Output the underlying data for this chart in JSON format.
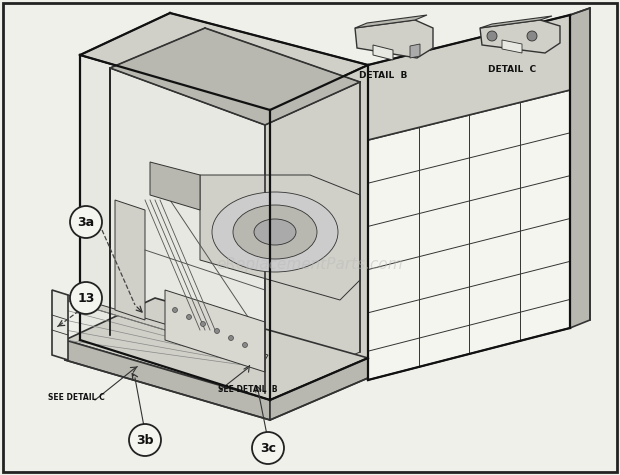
{
  "bg_color": "#f0f0eb",
  "border_color": "#222222",
  "line_color": "#333333",
  "thick_line": "#111111",
  "fill_light": "#e8e8e2",
  "fill_mid": "#d0d0c8",
  "fill_dark": "#b8b8b0",
  "fill_white": "#f5f5f0",
  "circle_bg": "#f5f5f0",
  "circle_border": "#222222",
  "text_color": "#111111",
  "watermark_color": "#bbbbbb",
  "detail_b_label": "DETAIL  B",
  "detail_c_label": "DETAIL  C",
  "see_detail_c_text": "SEE DETAIL C",
  "see_detail_b_text": "SEE DETAIL  B",
  "watermark": "eReplacementParts.com",
  "fig_width": 6.2,
  "fig_height": 4.75,
  "dpi": 100
}
